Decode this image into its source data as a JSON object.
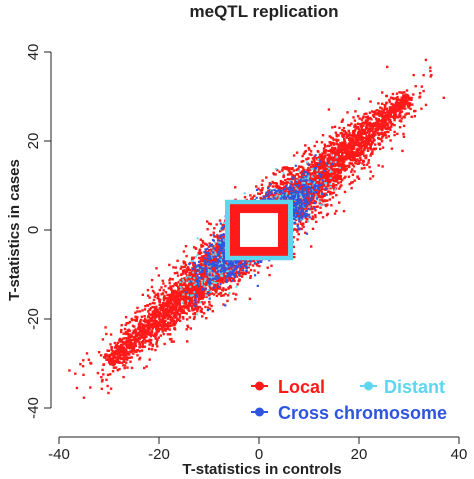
{
  "chart_data": {
    "type": "scatter",
    "title": "meQTL replication",
    "xlabel": "T-statistics in controls",
    "ylabel": "T-statistics in cases",
    "xlim": [
      -42,
      42
    ],
    "ylim": [
      -42,
      42
    ],
    "x_ticks": [
      "-40",
      "-20",
      "0",
      "20",
      "40"
    ],
    "y_ticks": [
      "-40",
      "-20",
      "0",
      "20",
      "40"
    ],
    "grid": false,
    "legend_placement": "bottom-right",
    "series": [
      {
        "name": "Local",
        "color": "#ff1a1a",
        "description_range": {
          "x": [
            -42,
            34
          ],
          "y": [
            -40,
            35
          ]
        },
        "excluded_center_box": [
          -4.5,
          4.5
        ]
      },
      {
        "name": "Distant",
        "color": "#5ed6f0",
        "description_range": {
          "x": [
            -12,
            16
          ],
          "y": [
            -12,
            16
          ]
        },
        "excluded_center_box": [
          -4.5,
          4.5
        ]
      },
      {
        "name": "Cross chromosome",
        "color": "#2f55e0",
        "description_range": {
          "x": [
            -14,
            14
          ],
          "y": [
            -14,
            14
          ]
        },
        "excluded_center_box": [
          -4.5,
          4.5
        ]
      }
    ]
  }
}
